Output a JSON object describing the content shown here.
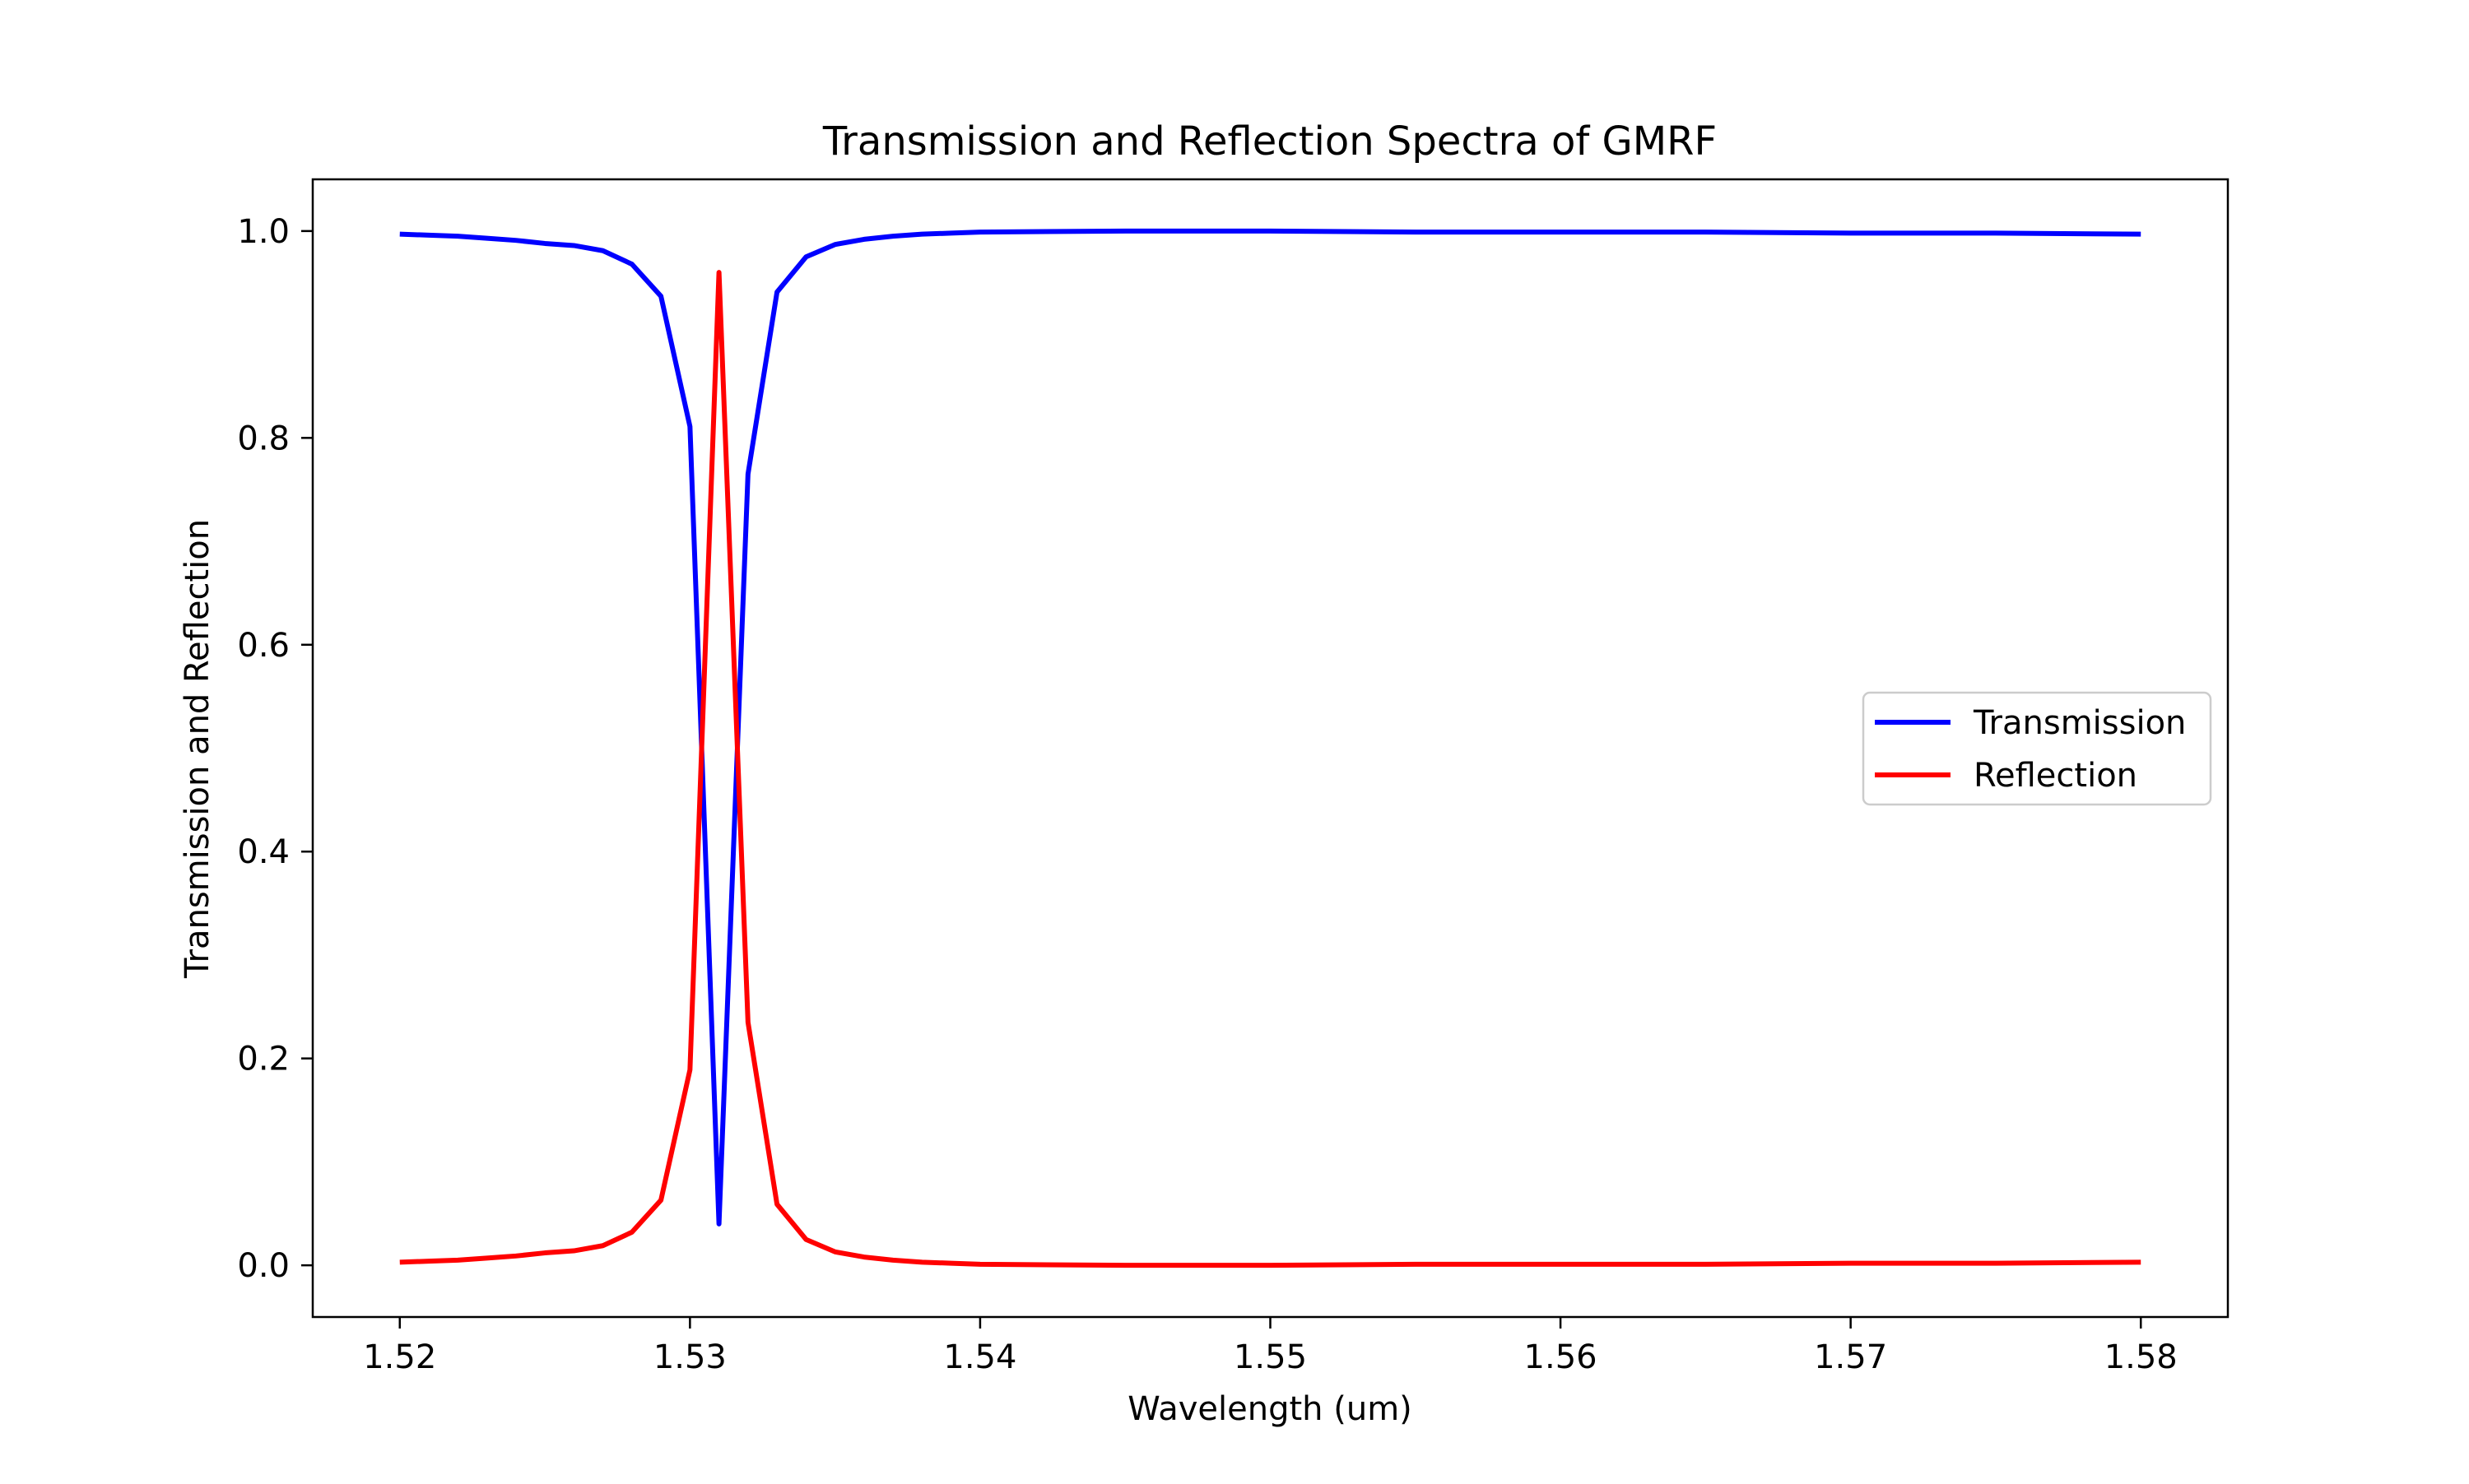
{
  "chart_data": {
    "type": "line",
    "title": "Transmission and Reflection Spectra of GMRF",
    "xlabel": "Wavelength (um)",
    "ylabel": "Transmission and Reflection",
    "xlim": [
      1.517,
      1.583
    ],
    "ylim": [
      -0.05,
      1.05
    ],
    "x_ticks": [
      1.52,
      1.53,
      1.54,
      1.55,
      1.56,
      1.57,
      1.58
    ],
    "x_tick_labels": [
      "1.52",
      "1.53",
      "1.54",
      "1.55",
      "1.56",
      "1.57",
      "1.58"
    ],
    "y_ticks": [
      0.0,
      0.2,
      0.4,
      0.6,
      0.8,
      1.0
    ],
    "y_tick_labels": [
      "0.0",
      "0.2",
      "0.4",
      "0.6",
      "0.8",
      "1.0"
    ],
    "grid": false,
    "legend_position": "center-right",
    "x": [
      1.52,
      1.521,
      1.522,
      1.523,
      1.524,
      1.525,
      1.526,
      1.527,
      1.528,
      1.529,
      1.53,
      1.531,
      1.532,
      1.533,
      1.534,
      1.535,
      1.536,
      1.537,
      1.538,
      1.539,
      1.54,
      1.545,
      1.55,
      1.555,
      1.56,
      1.565,
      1.57,
      1.575,
      1.58
    ],
    "series": [
      {
        "name": "Transmission",
        "color": "#0000ff",
        "values": [
          0.997,
          0.996,
          0.995,
          0.993,
          0.991,
          0.988,
          0.986,
          0.981,
          0.968,
          0.937,
          0.811,
          0.04,
          0.765,
          0.941,
          0.975,
          0.987,
          0.992,
          0.995,
          0.997,
          0.998,
          0.999,
          1.0,
          1.0,
          0.999,
          0.999,
          0.999,
          0.998,
          0.998,
          0.997
        ]
      },
      {
        "name": "Reflection",
        "color": "#ff0000",
        "values": [
          0.003,
          0.004,
          0.005,
          0.007,
          0.009,
          0.012,
          0.014,
          0.019,
          0.032,
          0.063,
          0.189,
          0.96,
          0.235,
          0.059,
          0.025,
          0.013,
          0.008,
          0.005,
          0.003,
          0.002,
          0.001,
          0.0,
          0.0,
          0.001,
          0.001,
          0.001,
          0.002,
          0.002,
          0.003
        ]
      }
    ]
  }
}
